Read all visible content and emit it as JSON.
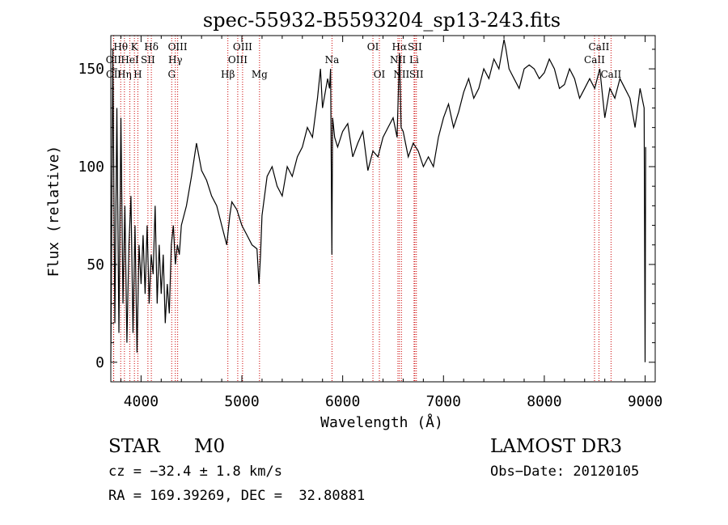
{
  "chart_data": {
    "type": "line",
    "title": "spec-55932-B5593204_sp13-243.fits",
    "xlabel": "Wavelength (Å)",
    "ylabel": "Flux (relative)",
    "xlim": [
      3700,
      9100
    ],
    "ylim": [
      -10,
      167
    ],
    "xticks": [
      4000,
      5000,
      6000,
      7000,
      8000,
      9000
    ],
    "yticks": [
      0,
      50,
      100,
      150
    ],
    "grid": false,
    "line_color": "#000000",
    "marker_color": "#cc0000",
    "series": [
      {
        "x": [
          3700,
          3720,
          3740,
          3760,
          3780,
          3800,
          3820,
          3840,
          3860,
          3880,
          3900,
          3920,
          3940,
          3960,
          3980,
          4000,
          4020,
          4040,
          4060,
          4080,
          4100,
          4120,
          4140,
          4160,
          4180,
          4200,
          4220,
          4240,
          4260,
          4280,
          4300,
          4320,
          4340,
          4360,
          4380,
          4400,
          4450,
          4500,
          4550,
          4600,
          4650,
          4700,
          4750,
          4800,
          4850,
          4880,
          4900,
          4950,
          5000,
          5050,
          5100,
          5150,
          5170,
          5185,
          5200,
          5250,
          5300,
          5350,
          5400,
          5450,
          5500,
          5550,
          5600,
          5650,
          5700,
          5750,
          5780,
          5800,
          5850,
          5870,
          5880,
          5893,
          5900,
          5920,
          5950,
          6000,
          6050,
          6100,
          6150,
          6200,
          6250,
          6300,
          6350,
          6400,
          6450,
          6500,
          6540,
          6563,
          6580,
          6600,
          6650,
          6700,
          6750,
          6800,
          6850,
          6900,
          6950,
          7000,
          7050,
          7100,
          7150,
          7200,
          7250,
          7300,
          7350,
          7400,
          7450,
          7500,
          7550,
          7600,
          7620,
          7650,
          7700,
          7750,
          7800,
          7850,
          7900,
          7950,
          8000,
          8050,
          8100,
          8150,
          8200,
          8250,
          8300,
          8350,
          8400,
          8450,
          8500,
          8550,
          8600,
          8650,
          8700,
          8750,
          8800,
          8850,
          8900,
          8950,
          8990,
          9000,
          9005
        ],
        "y": [
          0,
          160,
          20,
          130,
          15,
          125,
          30,
          80,
          10,
          60,
          85,
          15,
          70,
          5,
          60,
          40,
          65,
          35,
          70,
          30,
          55,
          45,
          80,
          30,
          60,
          35,
          55,
          20,
          40,
          25,
          60,
          70,
          50,
          60,
          55,
          70,
          80,
          95,
          112,
          98,
          93,
          85,
          80,
          70,
          60,
          75,
          82,
          78,
          70,
          65,
          60,
          58,
          40,
          55,
          75,
          95,
          100,
          90,
          85,
          100,
          95,
          105,
          110,
          120,
          115,
          135,
          150,
          130,
          145,
          140,
          150,
          55,
          125,
          115,
          110,
          118,
          122,
          105,
          112,
          118,
          98,
          108,
          105,
          115,
          120,
          125,
          115,
          158,
          120,
          118,
          105,
          112,
          108,
          100,
          105,
          100,
          115,
          125,
          132,
          120,
          128,
          138,
          145,
          135,
          140,
          150,
          145,
          155,
          150,
          165,
          160,
          150,
          145,
          140,
          150,
          152,
          150,
          145,
          148,
          155,
          150,
          140,
          142,
          150,
          145,
          135,
          140,
          145,
          140,
          150,
          125,
          140,
          135,
          145,
          140,
          135,
          120,
          140,
          130,
          0,
          110
        ]
      }
    ],
    "lines": [
      {
        "wl": 3727,
        "label": "OII",
        "row": 2
      },
      {
        "wl": 3729,
        "label": "OII",
        "row": 3
      },
      {
        "wl": 3798,
        "label": "Hθ",
        "row": 1
      },
      {
        "wl": 3835,
        "label": "Hη",
        "row": 3
      },
      {
        "wl": 3889,
        "label": "HeI",
        "row": 2
      },
      {
        "wl": 3934,
        "label": "K",
        "row": 1
      },
      {
        "wl": 3968,
        "label": "H",
        "row": 3
      },
      {
        "wl": 4068,
        "label": "SII",
        "row": 2
      },
      {
        "wl": 4102,
        "label": "Hδ",
        "row": 1
      },
      {
        "wl": 4304,
        "label": "G",
        "row": 3
      },
      {
        "wl": 4340,
        "label": "Hγ",
        "row": 2
      },
      {
        "wl": 4363,
        "label": "OIII",
        "row": 1
      },
      {
        "wl": 4861,
        "label": "Hβ",
        "row": 3
      },
      {
        "wl": 4959,
        "label": "OIII",
        "row": 2
      },
      {
        "wl": 5007,
        "label": "OIII",
        "row": 1
      },
      {
        "wl": 5175,
        "label": "Mg",
        "row": 3
      },
      {
        "wl": 5894,
        "label": "Na",
        "row": 2
      },
      {
        "wl": 6300,
        "label": "OI",
        "row": 1
      },
      {
        "wl": 6364,
        "label": "OI",
        "row": 3
      },
      {
        "wl": 6548,
        "label": "NII",
        "row": 2
      },
      {
        "wl": 6563,
        "label": "Hα",
        "row": 1
      },
      {
        "wl": 6583,
        "label": "NII",
        "row": 3
      },
      {
        "wl": 6708,
        "label": "Li",
        "row": 2
      },
      {
        "wl": 6716,
        "label": "SII",
        "row": 1
      },
      {
        "wl": 6731,
        "label": "SII",
        "row": 3
      },
      {
        "wl": 8498,
        "label": "CaII",
        "row": 2
      },
      {
        "wl": 8542,
        "label": "CaII",
        "row": 1
      },
      {
        "wl": 8662,
        "label": "CaII",
        "row": 3
      }
    ]
  },
  "info": {
    "class": "STAR",
    "subclass": "M0",
    "survey": "LAMOST DR3",
    "cz": "cz = −32.4 ± 1.8 km/s",
    "obs_date": "Obs−Date: 20120105",
    "coords": "RA = 169.39269, DEC =  32.80881"
  }
}
